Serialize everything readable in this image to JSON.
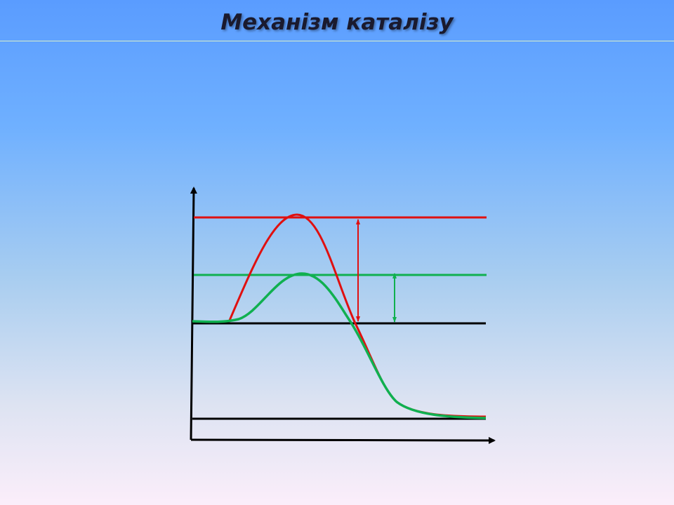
{
  "header": {
    "title": "Механізм каталізу"
  }
}
